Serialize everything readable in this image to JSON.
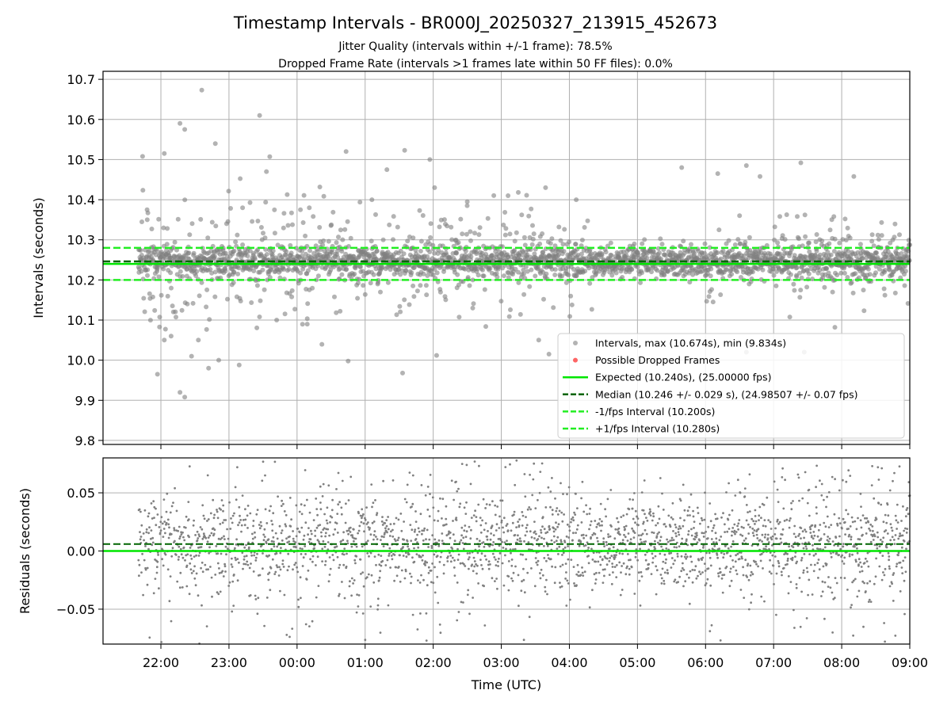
{
  "figure": {
    "title": "Timestamp Intervals - BR000J_20250327_213915_452673",
    "subtitle_1": "Jitter Quality (intervals within +/-1 frame): 78.5%",
    "subtitle_2": "Dropped Frame Rate (intervals >1 frames late within 50 FF files): 0.0%"
  },
  "chart_data": [
    {
      "type": "scatter",
      "panel": "top",
      "ylabel": "Intervals (seconds)",
      "ylim": [
        9.79,
        10.72
      ],
      "yticks": [
        9.8,
        9.9,
        10.0,
        10.1,
        10.2,
        10.3,
        10.4,
        10.5,
        10.6,
        10.7
      ],
      "ytick_labels": [
        "9.8",
        "9.9",
        "10.0",
        "10.1",
        "10.2",
        "10.3",
        "10.4",
        "10.5",
        "10.6",
        "10.7"
      ],
      "xlim_hours": [
        -2.85,
        9.0
      ],
      "xticks_hours": [
        -2,
        -1,
        0,
        1,
        2,
        3,
        4,
        5,
        6,
        7,
        8,
        9
      ],
      "grid": true,
      "legend_position": "lower right",
      "legend": [
        {
          "label": "Intervals, max (10.674s), min (9.834s)",
          "kind": "gray-dot"
        },
        {
          "label": "Possible Dropped Frames",
          "kind": "red-dot"
        },
        {
          "label": "Expected (10.240s), (25.00000 fps)",
          "kind": "solid-green"
        },
        {
          "label": "Median (10.246 +/- 0.029 s), (24.98507 +/- 0.07 fps)",
          "kind": "dashed-darkgreen"
        },
        {
          "label": "-1/fps Interval (10.200s)",
          "kind": "dashed-lime"
        },
        {
          "label": "+1/fps Interval (10.280s)",
          "kind": "dashed-lime"
        }
      ],
      "reference_lines": {
        "expected": 10.24,
        "median": 10.246,
        "minus_one_fps": 10.2,
        "plus_one_fps": 10.28
      },
      "intervals_max": 10.674,
      "intervals_min": 9.834,
      "data_start_hour": -2.33,
      "data_end_hour": 9.0,
      "outlier_points": [
        [
          -2.05,
          9.965
        ],
        [
          -1.72,
          9.92
        ],
        [
          -1.65,
          9.908
        ],
        [
          -1.85,
          10.06
        ],
        [
          -1.95,
          10.05
        ],
        [
          -1.55,
          10.01
        ],
        [
          -1.45,
          10.05
        ],
        [
          -1.3,
          9.98
        ],
        [
          -1.15,
          10.0
        ],
        [
          -0.85,
          9.988
        ],
        [
          -0.3,
          10.1
        ],
        [
          0.15,
          10.09
        ],
        [
          0.75,
          9.998
        ],
        [
          1.55,
          9.968
        ],
        [
          2.05,
          10.012
        ],
        [
          3.55,
          10.05
        ],
        [
          3.7,
          10.015
        ],
        [
          6.6,
          10.02
        ],
        [
          7.45,
          10.02
        ],
        [
          7.9,
          10.082
        ],
        [
          -1.72,
          10.59
        ],
        [
          -1.65,
          10.575
        ],
        [
          -1.95,
          10.515
        ],
        [
          -1.4,
          10.673
        ],
        [
          -1.2,
          10.54
        ],
        [
          -0.55,
          10.61
        ],
        [
          -0.45,
          10.47
        ],
        [
          0.05,
          10.375
        ],
        [
          0.18,
          10.38
        ],
        [
          0.72,
          10.52
        ],
        [
          1.32,
          10.475
        ],
        [
          1.58,
          10.523
        ],
        [
          1.95,
          10.5
        ],
        [
          2.02,
          10.43
        ],
        [
          3.25,
          10.418
        ],
        [
          3.65,
          10.43
        ],
        [
          5.65,
          10.48
        ],
        [
          6.18,
          10.465
        ],
        [
          6.6,
          10.485
        ],
        [
          6.8,
          10.458
        ],
        [
          7.4,
          10.492
        ],
        [
          8.05,
          10.352
        ],
        [
          1.1,
          10.4
        ],
        [
          4.1,
          10.4
        ],
        [
          3.1,
          10.41
        ],
        [
          1.8,
          10.373
        ],
        [
          2.5,
          10.395
        ],
        [
          -2.2,
          10.35
        ],
        [
          -0.8,
          10.38
        ],
        [
          6.5,
          10.36
        ]
      ],
      "y_spread_by_window": [
        {
          "from": -2.33,
          "to": 0.4,
          "spread": 0.16
        },
        {
          "from": 0.4,
          "to": 2.5,
          "spread": 0.12
        },
        {
          "from": 2.5,
          "to": 4.35,
          "spread": 0.12
        },
        {
          "from": 4.35,
          "to": 5.95,
          "spread": 0.04
        },
        {
          "from": 5.95,
          "to": 9.0,
          "spread": 0.09
        }
      ]
    },
    {
      "type": "scatter",
      "panel": "bottom",
      "xlabel": "Time (UTC)",
      "ylabel": "Residuals (seconds)",
      "ylim": [
        -0.08,
        0.08
      ],
      "yticks": [
        -0.05,
        0.0,
        0.05
      ],
      "ytick_labels": [
        "−0.05",
        "0.00",
        "0.05"
      ],
      "xlim_hours": [
        -2.85,
        9.0
      ],
      "xticks_hours": [
        -2,
        -1,
        0,
        1,
        2,
        3,
        4,
        5,
        6,
        7,
        8,
        9
      ],
      "xtick_labels": [
        "22:00",
        "23:00",
        "00:00",
        "01:00",
        "02:00",
        "03:00",
        "04:00",
        "05:00",
        "06:00",
        "07:00",
        "08:00",
        "09:00"
      ],
      "grid": true,
      "reference_lines": {
        "zero": 0.0,
        "median_offset": 0.006
      },
      "data_start_hour": -2.33,
      "data_end_hour": 9.0
    }
  ],
  "colors": {
    "points": "#808080",
    "expected": "#00e600",
    "median": "#006400",
    "fps_bounds": "#22ee22",
    "grid": "#b0b0b0",
    "axes": "#000000"
  }
}
